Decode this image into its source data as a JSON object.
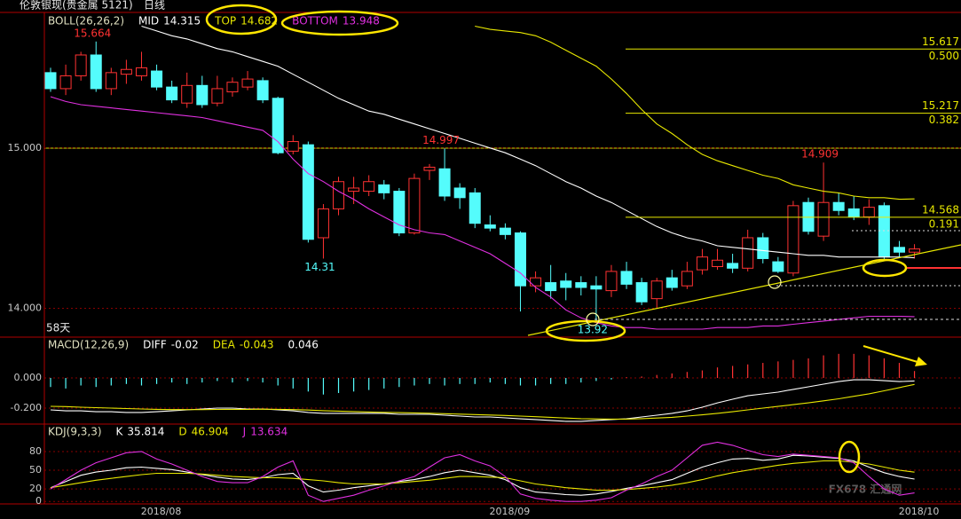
{
  "chart_data": [
    {
      "type": "candlestick",
      "title": "伦敦银现(贵金属  5121)",
      "period": "日线",
      "indicator": "BOLL(26,26,2)",
      "span_label": "58天",
      "categories": [
        null,
        null,
        null,
        null,
        null,
        null,
        null,
        "2018/08",
        null,
        null,
        null,
        null,
        null,
        null,
        null,
        null,
        null,
        null,
        null,
        null,
        null,
        null,
        null,
        null,
        null,
        null,
        null,
        null,
        null,
        null,
        "2018/09",
        null,
        null,
        null,
        null,
        null,
        null,
        null,
        null,
        null,
        null,
        null,
        null,
        null,
        null,
        null,
        null,
        null,
        null,
        null,
        null,
        null,
        null,
        null,
        null,
        null,
        null,
        "2018/10"
      ],
      "open": [
        15.47,
        15.37,
        15.45,
        15.58,
        15.37,
        15.46,
        15.45,
        15.48,
        15.38,
        15.28,
        15.39,
        15.28,
        15.35,
        15.38,
        15.42,
        15.31,
        14.98,
        15.02,
        14.44,
        14.62,
        14.73,
        14.73,
        14.77,
        14.73,
        14.47,
        14.86,
        14.87,
        14.75,
        14.72,
        14.52,
        14.5,
        14.47,
        14.14,
        14.16,
        14.17,
        14.16,
        14.14,
        14.11,
        14.23,
        14.16,
        14.06,
        14.19,
        14.14,
        14.24,
        14.26,
        14.28,
        14.25,
        14.44,
        14.29,
        14.22,
        14.66,
        14.45,
        14.66,
        14.62,
        14.57,
        14.64,
        14.38,
        14.35
      ],
      "high": [
        15.5,
        15.52,
        15.6,
        15.664,
        15.5,
        15.55,
        15.6,
        15.52,
        15.42,
        15.47,
        15.45,
        15.45,
        15.44,
        15.48,
        15.44,
        15.32,
        15.08,
        15.04,
        14.65,
        14.82,
        14.82,
        14.83,
        14.8,
        14.75,
        14.84,
        14.9,
        14.997,
        14.78,
        14.75,
        14.58,
        14.53,
        14.48,
        14.23,
        14.27,
        14.22,
        14.2,
        14.2,
        14.27,
        14.29,
        14.19,
        14.19,
        14.24,
        14.29,
        14.37,
        14.37,
        14.34,
        14.49,
        14.47,
        14.32,
        14.67,
        14.69,
        14.909,
        14.72,
        14.7,
        14.68,
        14.66,
        14.42,
        14.4
      ],
      "low": [
        15.35,
        15.33,
        15.42,
        15.35,
        15.33,
        15.4,
        15.42,
        15.36,
        15.28,
        15.25,
        15.25,
        15.26,
        15.32,
        15.36,
        15.28,
        14.96,
        14.96,
        14.41,
        14.31,
        14.58,
        14.65,
        14.7,
        14.68,
        14.45,
        14.46,
        14.8,
        14.67,
        14.62,
        14.5,
        14.48,
        14.43,
        13.98,
        14.1,
        14.06,
        14.05,
        14.08,
        13.92,
        14.07,
        14.12,
        14.02,
        14.0,
        14.11,
        14.12,
        14.21,
        14.24,
        14.22,
        14.23,
        14.28,
        14.22,
        14.2,
        14.46,
        14.42,
        14.58,
        14.55,
        14.52,
        14.3,
        14.32,
        14.31
      ],
      "close": [
        15.37,
        15.45,
        15.58,
        15.37,
        15.47,
        15.49,
        15.5,
        15.38,
        15.3,
        15.39,
        15.27,
        15.37,
        15.41,
        15.43,
        15.3,
        14.97,
        15.04,
        14.43,
        14.62,
        14.79,
        14.75,
        14.79,
        14.72,
        14.47,
        14.81,
        14.88,
        14.7,
        14.69,
        14.53,
        14.5,
        14.46,
        14.14,
        14.19,
        14.11,
        14.13,
        14.13,
        14.12,
        14.23,
        14.15,
        14.04,
        14.17,
        14.13,
        14.23,
        14.32,
        14.3,
        14.25,
        14.44,
        14.31,
        14.23,
        14.64,
        14.48,
        14.66,
        14.61,
        14.57,
        14.63,
        14.32,
        14.35,
        14.37
      ],
      "up_color": "#ff3232",
      "down_color": "#54fcfc",
      "series": [
        {
          "name": "MID",
          "color": "#ffffff",
          "values": [
            null,
            null,
            null,
            null,
            null,
            null,
            15.76,
            15.73,
            15.7,
            15.68,
            15.65,
            15.62,
            15.6,
            15.57,
            15.54,
            15.51,
            15.46,
            15.41,
            15.36,
            15.31,
            15.27,
            15.23,
            15.21,
            15.18,
            15.15,
            15.12,
            15.09,
            15.06,
            15.03,
            15.0,
            14.97,
            14.93,
            14.89,
            14.84,
            14.79,
            14.75,
            14.7,
            14.66,
            14.61,
            14.56,
            14.51,
            14.47,
            14.44,
            14.42,
            14.39,
            14.38,
            14.37,
            14.36,
            14.35,
            14.34,
            14.33,
            14.33,
            14.32,
            14.32,
            14.32,
            14.32,
            14.32,
            14.315
          ]
        },
        {
          "name": "TOP",
          "color": "#e8e800",
          "values": [
            null,
            null,
            null,
            null,
            null,
            null,
            null,
            null,
            null,
            null,
            null,
            null,
            null,
            null,
            null,
            null,
            null,
            null,
            null,
            null,
            null,
            null,
            null,
            null,
            null,
            null,
            null,
            null,
            15.76,
            15.74,
            15.73,
            15.72,
            15.7,
            15.66,
            15.61,
            15.56,
            15.51,
            15.43,
            15.34,
            15.24,
            15.15,
            15.09,
            15.02,
            14.96,
            14.92,
            14.89,
            14.86,
            14.83,
            14.81,
            14.77,
            14.75,
            14.73,
            14.72,
            14.7,
            14.69,
            14.69,
            14.68,
            14.682
          ]
        },
        {
          "name": "BOTTOM",
          "color": "#e030e0",
          "values": [
            15.32,
            15.29,
            15.27,
            15.26,
            15.25,
            15.24,
            15.23,
            15.22,
            15.21,
            15.2,
            15.19,
            15.17,
            15.15,
            15.13,
            15.11,
            15.04,
            14.93,
            14.84,
            14.79,
            14.73,
            14.68,
            14.62,
            14.57,
            14.52,
            14.49,
            14.47,
            14.46,
            14.42,
            14.38,
            14.34,
            14.28,
            14.22,
            14.13,
            14.07,
            13.99,
            13.94,
            13.91,
            13.89,
            13.88,
            13.88,
            13.87,
            13.87,
            13.87,
            13.87,
            13.88,
            13.88,
            13.88,
            13.89,
            13.89,
            13.9,
            13.91,
            13.92,
            13.93,
            13.94,
            13.95,
            13.95,
            13.95,
            13.948
          ]
        }
      ],
      "fib_levels": [
        {
          "price": 15.617,
          "ratio": "0.500"
        },
        {
          "price": 15.217,
          "ratio": "0.382"
        },
        {
          "price": 14.568,
          "ratio": "0.191"
        }
      ],
      "ylim": [
        13.82,
        15.84
      ],
      "yticks": [
        {
          "value": 15,
          "label": "15.000"
        },
        {
          "value": 14,
          "label": "14.000"
        }
      ],
      "grid": true
    },
    {
      "type": "macd",
      "indicator": "MACD(12,26,9)",
      "series": [
        {
          "name": "DIFF",
          "color": "#ffffff",
          "values": [
            -0.212,
            -0.218,
            -0.218,
            -0.224,
            -0.224,
            -0.229,
            -0.229,
            -0.224,
            -0.218,
            -0.212,
            -0.206,
            -0.2,
            -0.2,
            -0.206,
            -0.206,
            -0.212,
            -0.218,
            -0.229,
            -0.235,
            -0.235,
            -0.235,
            -0.235,
            -0.235,
            -0.241,
            -0.241,
            -0.241,
            -0.247,
            -0.253,
            -0.259,
            -0.259,
            -0.265,
            -0.271,
            -0.276,
            -0.282,
            -0.288,
            -0.288,
            -0.282,
            -0.276,
            -0.271,
            -0.259,
            -0.247,
            -0.235,
            -0.218,
            -0.194,
            -0.165,
            -0.141,
            -0.118,
            -0.106,
            -0.094,
            -0.076,
            -0.059,
            -0.041,
            -0.024,
            -0.012,
            -0.012,
            -0.018,
            -0.024,
            -0.02
          ]
        },
        {
          "name": "DEA",
          "color": "#e8e800",
          "values": [
            -0.188,
            -0.19,
            -0.194,
            -0.197,
            -0.2,
            -0.203,
            -0.206,
            -0.208,
            -0.21,
            -0.21,
            -0.21,
            -0.209,
            -0.208,
            -0.208,
            -0.207,
            -0.208,
            -0.21,
            -0.213,
            -0.217,
            -0.22,
            -0.223,
            -0.226,
            -0.228,
            -0.23,
            -0.232,
            -0.234,
            -0.237,
            -0.24,
            -0.243,
            -0.246,
            -0.249,
            -0.253,
            -0.257,
            -0.261,
            -0.266,
            -0.27,
            -0.272,
            -0.273,
            -0.273,
            -0.27,
            -0.266,
            -0.261,
            -0.253,
            -0.245,
            -0.235,
            -0.224,
            -0.212,
            -0.2,
            -0.189,
            -0.177,
            -0.165,
            -0.152,
            -0.138,
            -0.122,
            -0.105,
            -0.085,
            -0.064,
            -0.043
          ]
        }
      ],
      "bars": {
        "up_color": "#ff3232",
        "down_color": "#54fcfc",
        "values": [
          -0.06,
          -0.07,
          -0.05,
          -0.06,
          -0.05,
          -0.04,
          -0.05,
          -0.04,
          -0.03,
          -0.04,
          -0.03,
          -0.02,
          -0.03,
          -0.02,
          -0.03,
          -0.05,
          -0.07,
          -0.09,
          -0.11,
          -0.1,
          -0.09,
          -0.08,
          -0.07,
          -0.06,
          -0.05,
          -0.04,
          -0.05,
          -0.04,
          -0.04,
          -0.03,
          -0.04,
          -0.05,
          -0.05,
          -0.04,
          -0.04,
          -0.03,
          -0.02,
          -0.01,
          0.005,
          0.01,
          0.02,
          0.03,
          0.04,
          0.05,
          0.07,
          0.08,
          0.09,
          0.1,
          0.11,
          0.12,
          0.13,
          0.15,
          0.16,
          0.16,
          0.15,
          0.13,
          0.1,
          0.046
        ]
      },
      "ylim": [
        -0.306,
        0.271
      ],
      "yticks": [
        {
          "value": 0,
          "label": "0.000"
        },
        {
          "value": -0.2,
          "label": "-0.200"
        }
      ],
      "grid": true
    },
    {
      "type": "kdj",
      "indicator": "KDJ(9,3,3)",
      "series": [
        {
          "name": "K",
          "color": "#ffffff",
          "values": [
            22,
            32,
            42,
            47,
            50,
            54,
            55,
            53,
            51,
            47,
            43,
            39,
            36,
            35,
            38,
            43,
            45,
            25,
            15,
            18,
            22,
            25,
            28,
            32,
            35,
            40,
            46,
            50,
            46,
            42,
            35,
            22,
            15,
            13,
            11,
            10,
            12,
            16,
            21,
            25,
            30,
            35,
            45,
            55,
            62,
            68,
            69,
            66,
            68,
            74,
            73,
            71,
            69,
            65,
            55,
            46,
            40,
            35.814
          ]
        },
        {
          "name": "D",
          "color": "#e8e800",
          "values": [
            22,
            26,
            30,
            34,
            37,
            40,
            43,
            45,
            45,
            45,
            44,
            42,
            40,
            39,
            38,
            38,
            37,
            35,
            33,
            30,
            28,
            28,
            28,
            30,
            32,
            34,
            37,
            40,
            40,
            39,
            38,
            33,
            28,
            25,
            22,
            20,
            18,
            18,
            19,
            21,
            23,
            26,
            30,
            35,
            41,
            46,
            50,
            54,
            58,
            61,
            63,
            65,
            65,
            63,
            60,
            55,
            50,
            46.904
          ]
        },
        {
          "name": "J",
          "color": "#e030e0",
          "values": [
            20,
            35,
            50,
            62,
            70,
            78,
            80,
            68,
            60,
            50,
            40,
            32,
            30,
            30,
            40,
            55,
            65,
            10,
            0,
            5,
            10,
            18,
            25,
            33,
            40,
            55,
            70,
            75,
            65,
            57,
            40,
            12,
            5,
            2,
            0,
            0,
            2,
            6,
            18,
            28,
            40,
            50,
            70,
            90,
            95,
            90,
            82,
            75,
            72,
            76,
            74,
            72,
            70,
            62,
            40,
            20,
            10,
            13.634
          ]
        }
      ],
      "ylim": [
        -4,
        124
      ],
      "yticks": [
        80,
        50,
        20,
        0
      ],
      "grid": true
    }
  ],
  "watermark": "FX678 汇通网"
}
